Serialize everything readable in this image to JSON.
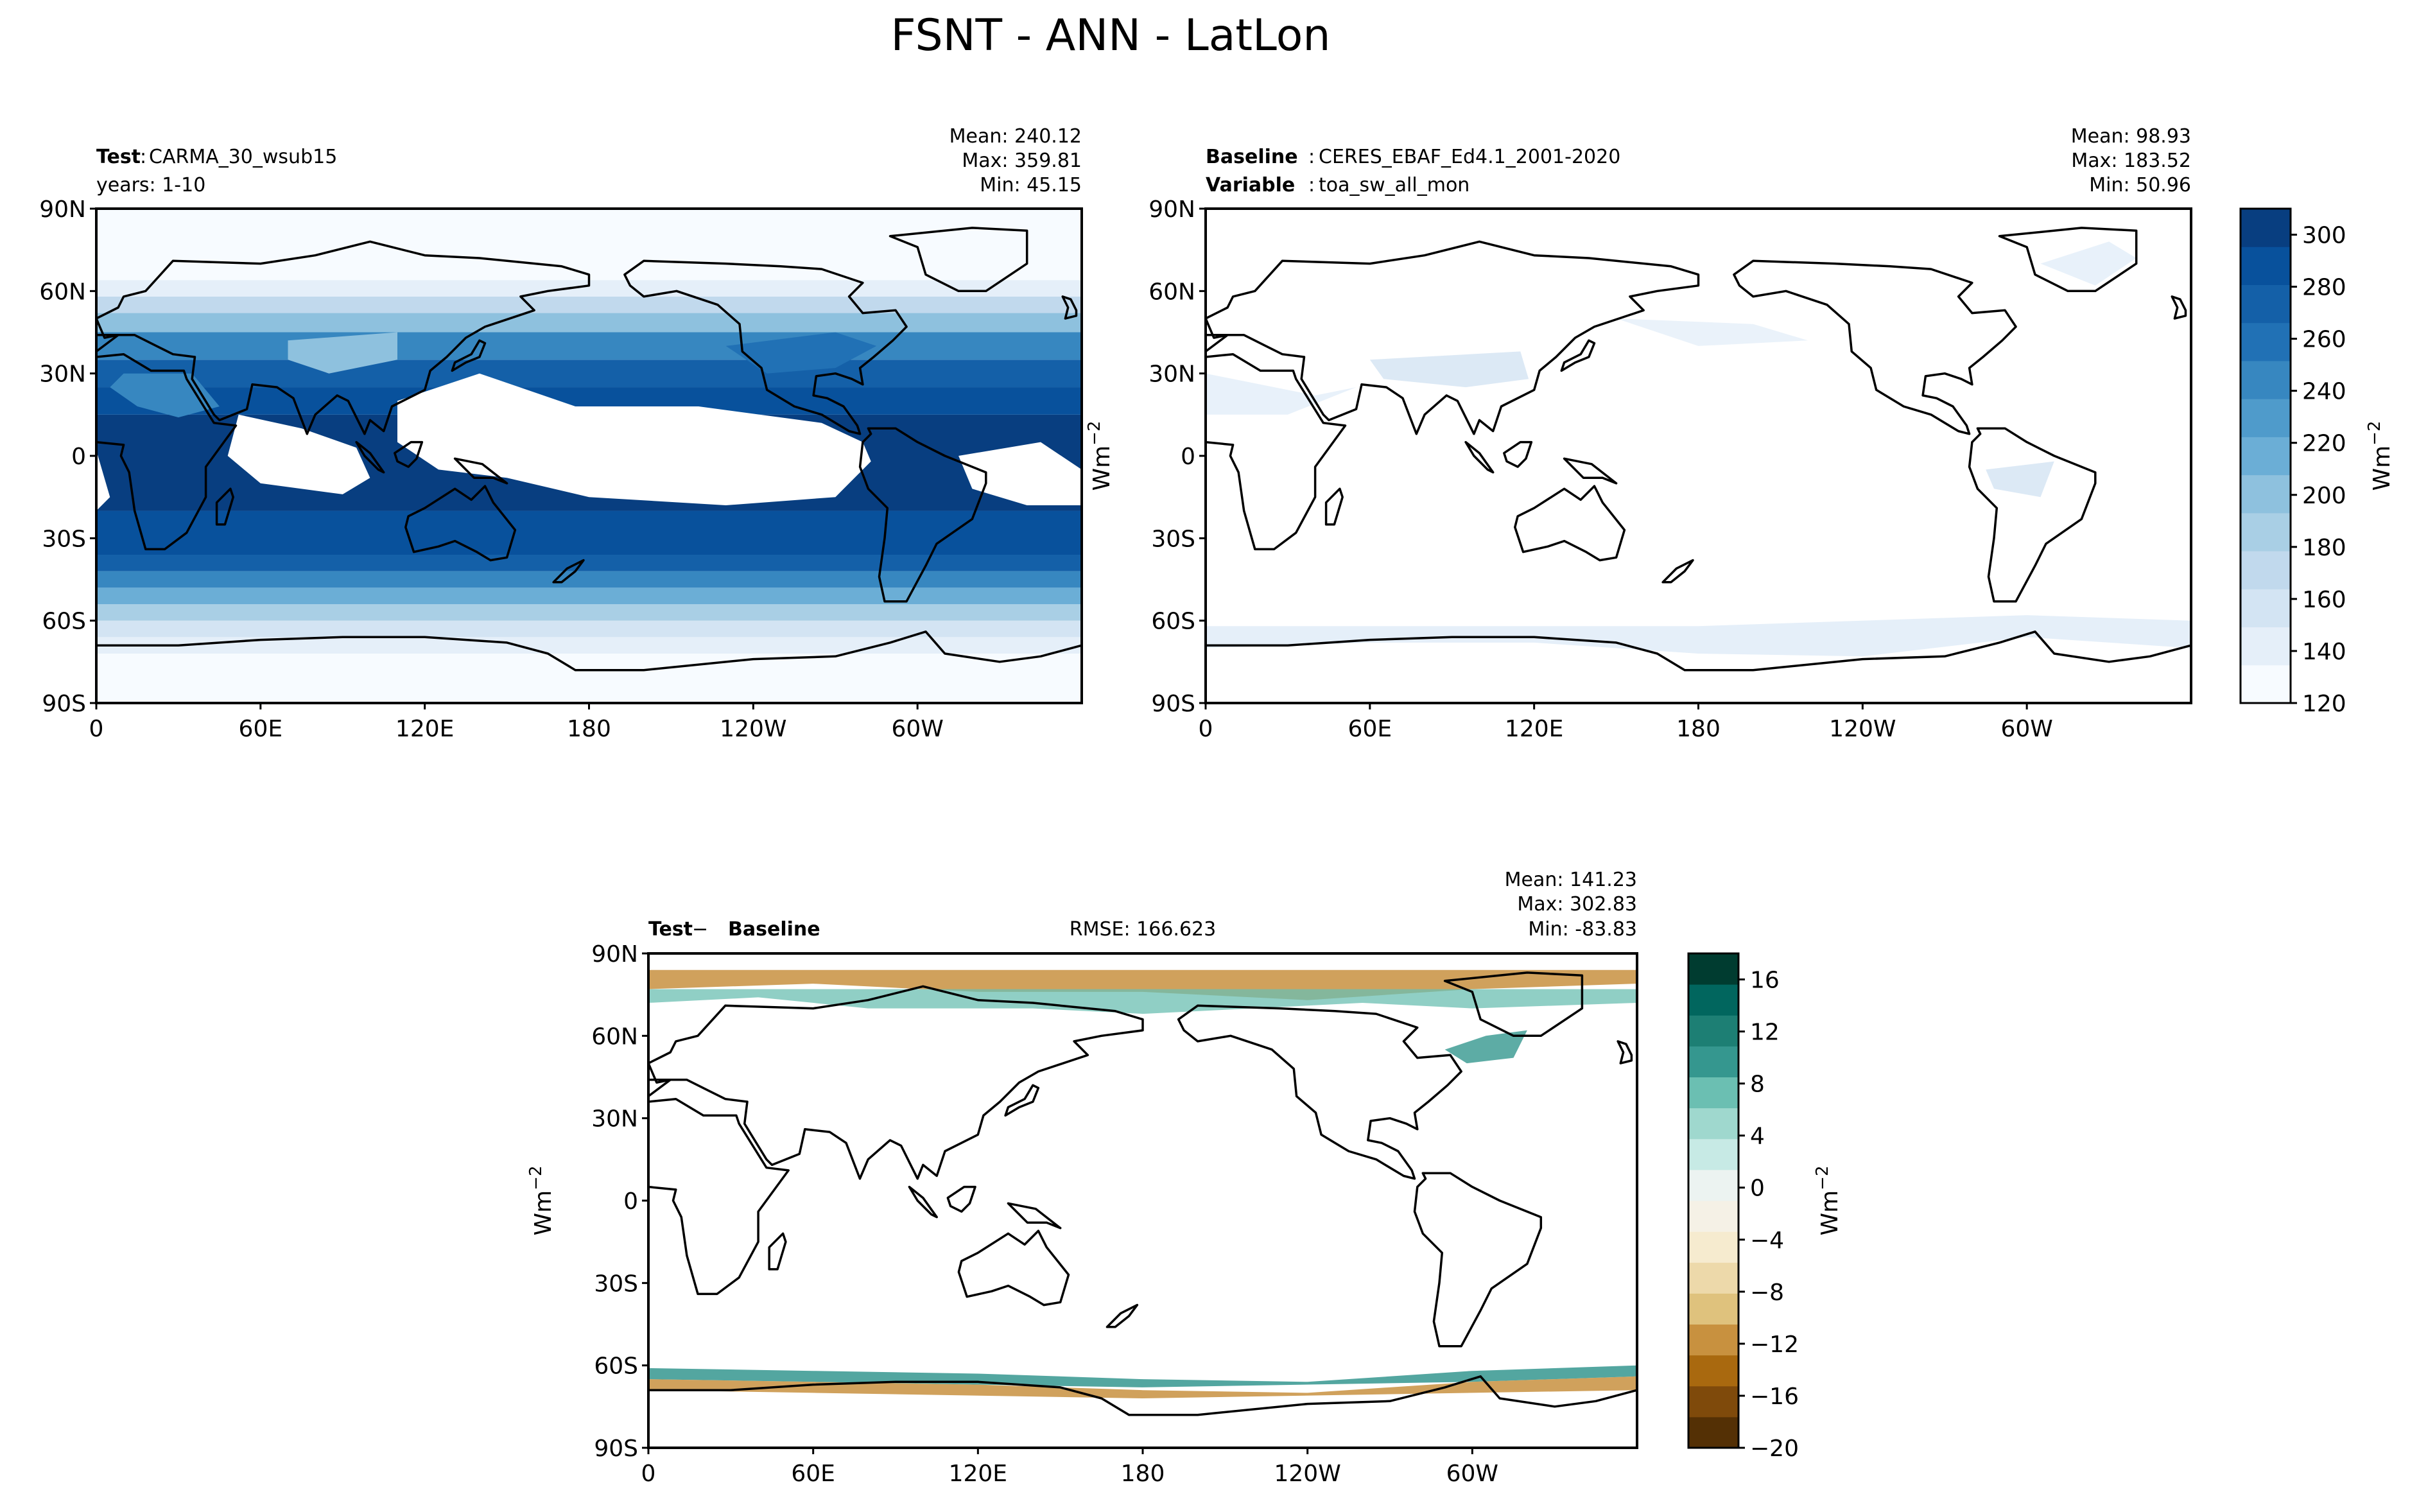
{
  "figure_title": "FSNT - ANN - LatLon",
  "colors": {
    "blues": [
      "#f7fbff",
      "#e5eff9",
      "#d3e4f3",
      "#c1d9ed",
      "#a9cfe5",
      "#8ec1de",
      "#6baed6",
      "#4f9bcb",
      "#3787c0",
      "#2171b5",
      "#1460a8",
      "#08519c",
      "#083e80"
    ],
    "brbg_neg": [
      "#543005",
      "#7f4a0b",
      "#a9690f",
      "#c8913f",
      "#dfc27d",
      "#edd9aa",
      "#f6ebcf",
      "#f5f1e6"
    ],
    "brbg_pos": [
      "#ecf3f1",
      "#c7eae5",
      "#9fd8ce",
      "#6bbfb2",
      "#35978f",
      "#1d7f74",
      "#01665e",
      "#003c30"
    ],
    "land_outline": "#000000"
  },
  "chart_data": [
    {
      "type": "heatmap",
      "panel": "test",
      "label_bold": "Test",
      "label_value": "CARMA_30_wsub15",
      "subtitle": "years: 1-10",
      "stats": {
        "mean": "Mean: 240.12",
        "max": "Max: 359.81",
        "min": "Min: 45.15"
      },
      "xlabel": "",
      "ylabel": "",
      "x_ticks": [
        "0",
        "60E",
        "120E",
        "180",
        "120W",
        "60W"
      ],
      "y_ticks": [
        "90N",
        "60N",
        "30N",
        "0",
        "30S",
        "60S",
        "90S"
      ],
      "xlim": [
        0,
        360
      ],
      "ylim": [
        -90,
        90
      ],
      "colorbar": "shared-top",
      "description_bands": [
        {
          "lat": [
            -90,
            -72
          ],
          "value": 120
        },
        {
          "lat": [
            -72,
            -50
          ],
          "value": 200
        },
        {
          "lat": [
            -50,
            -25
          ],
          "value": 280
        },
        {
          "lat": [
            -25,
            20
          ],
          "value": 300
        },
        {
          "lat": [
            20,
            45
          ],
          "value": 280
        },
        {
          "lat": [
            45,
            62
          ],
          "value": 200
        },
        {
          "lat": [
            62,
            90
          ],
          "value": 120
        }
      ]
    },
    {
      "type": "heatmap",
      "panel": "baseline",
      "label_bold": "Baseline",
      "label_value": "CERES_EBAF_Ed4.1_2001-2020",
      "label2_bold": "Variable",
      "label2_value": "toa_sw_all_mon",
      "stats": {
        "mean": "Mean: 98.93",
        "max": "Max: 183.52",
        "min": "Min: 50.96"
      },
      "x_ticks": [
        "0",
        "60E",
        "120E",
        "180",
        "120W",
        "60W"
      ],
      "y_ticks": [
        "90N",
        "60N",
        "30N",
        "0",
        "30S",
        "60S",
        "90S"
      ],
      "xlim": [
        0,
        360
      ],
      "ylim": [
        -90,
        90
      ],
      "colorbar": {
        "label": "Wm",
        "label_sup": "−2",
        "ticks": [
          "120",
          "140",
          "160",
          "180",
          "200",
          "220",
          "240",
          "260",
          "280",
          "300"
        ],
        "range": [
          120,
          310
        ]
      }
    },
    {
      "type": "heatmap",
      "panel": "difference",
      "label_bold_a": "Test",
      "label_minus": "−",
      "label_bold_b": "Baseline",
      "rmse": "RMSE: 166.623",
      "stats": {
        "mean": "Mean: 141.23",
        "max": "Max: 302.83",
        "min": "Min: -83.83"
      },
      "x_ticks": [
        "0",
        "60E",
        "120E",
        "180",
        "120W",
        "60W"
      ],
      "y_ticks": [
        "90N",
        "60N",
        "30N",
        "0",
        "30S",
        "60S",
        "90S"
      ],
      "xlim": [
        0,
        360
      ],
      "ylim": [
        -90,
        90
      ],
      "ylabel": "Wm",
      "ylabel_sup": "−2",
      "colorbar": {
        "label": "Wm",
        "label_sup": "−2",
        "ticks": [
          "16",
          "12",
          "8",
          "4",
          "0",
          "−4",
          "−8",
          "−12",
          "−16",
          "−20"
        ],
        "range": [
          -20,
          18
        ]
      }
    }
  ],
  "top_left_ylabel": "Wm",
  "top_left_ylabel_sup": "−2"
}
